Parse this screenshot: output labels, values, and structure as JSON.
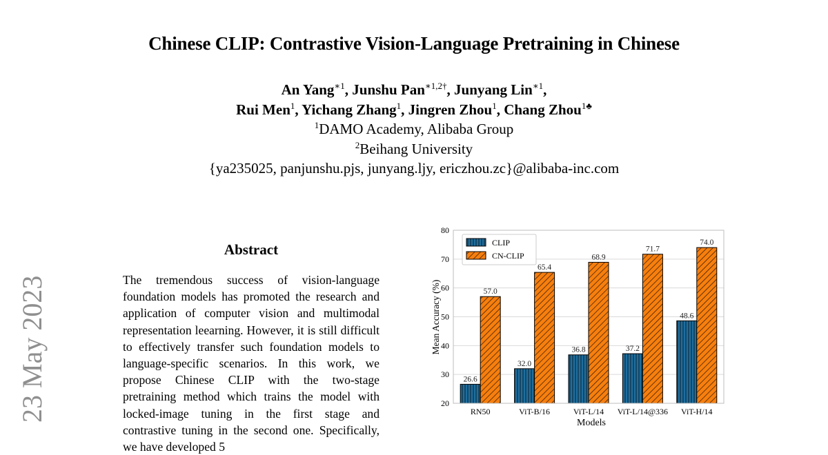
{
  "paper": {
    "title": "Chinese CLIP: Contrastive Vision-Language Pretraining in Chinese",
    "authors": [
      {
        "name": "An Yang",
        "sup": "∗1",
        "sep": ", "
      },
      {
        "name": "Junshu Pan",
        "sup": "∗1,2†",
        "sep": ", "
      },
      {
        "name": "Junyang Lin",
        "sup": "∗1",
        "sep": ","
      },
      {
        "name": "Rui Men",
        "sup": "1",
        "sep": ", "
      },
      {
        "name": "Yichang Zhang",
        "sup": "1",
        "sep": ", "
      },
      {
        "name": "Jingren Zhou",
        "sup": "1",
        "sep": ", "
      },
      {
        "name": "Chang Zhou",
        "sup": "1♣",
        "sep": ""
      }
    ],
    "affiliation_1_sup": "1",
    "affiliation_1": "DAMO Academy, Alibaba Group",
    "affiliation_2_sup": "2",
    "affiliation_2": "Beihang University",
    "emails": "{ya235025, panjunshu.pjs, junyang.ljy, ericzhou.zc}@alibaba-inc.com",
    "arxiv_margin": "23 May 2023",
    "abstract_heading": "Abstract",
    "abstract_text": "The tremendous success of vision-language foundation models has promoted the research and application of computer vision and multimodal representation leearning. However, it is still difficult to effectively transfer such foundation models to language-specific scenarios. In this work, we propose Chinese CLIP with the two-stage pretraining method which trains the model with locked-image tuning in the first stage and contrastive tuning in the second one. Specifically, we have developed 5"
  },
  "colors": {
    "clip": "#1f6f9f",
    "cn_clip": "#f77f0e",
    "arxiv_gray": "#8f8f8f"
  },
  "chart_data": {
    "type": "bar",
    "categories": [
      "RN50",
      "ViT-B/16",
      "ViT-L/14",
      "ViT-L/14@336",
      "ViT-H/14"
    ],
    "series": [
      {
        "name": "CLIP",
        "values": [
          26.6,
          32.0,
          36.8,
          37.2,
          48.6
        ],
        "labels": [
          "26.6",
          "32.0",
          "36.8",
          "37.2",
          "48.6"
        ],
        "hatch": "vertical"
      },
      {
        "name": "CN-CLIP",
        "values": [
          57.0,
          65.4,
          68.9,
          71.7,
          74.0
        ],
        "labels": [
          "57.0",
          "65.4",
          "68.9",
          "71.7",
          "74.0"
        ],
        "hatch": "diagonal"
      }
    ],
    "xlabel": "Models",
    "ylabel": "Mean Accuracy (%)",
    "ylim": [
      20,
      80
    ],
    "yticks": [
      20,
      30,
      40,
      50,
      60,
      70,
      80
    ],
    "grid": true,
    "legend_position": "top-left"
  }
}
